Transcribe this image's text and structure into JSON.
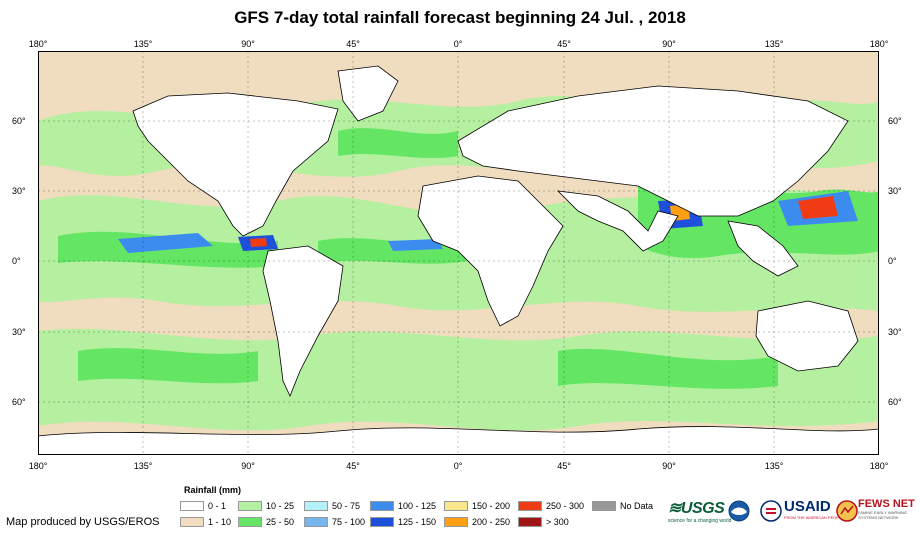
{
  "header": {
    "title": "GFS 7-day total rainfall forecast beginning 24 Jul. , 2018"
  },
  "map": {
    "longitude_ticks": [
      "180°",
      "135°",
      "90°",
      "45°",
      "0°",
      "45°",
      "90°",
      "135°",
      "180°"
    ],
    "latitude_ticks": [
      "60°",
      "30°",
      "0°",
      "30°",
      "60°"
    ],
    "longitude_values": [
      -180,
      -135,
      -90,
      -45,
      0,
      45,
      90,
      135,
      180
    ],
    "latitude_values": [
      60,
      30,
      0,
      -30,
      -60
    ],
    "lat_range": [
      -80,
      85
    ],
    "lon_range": [
      -180,
      180
    ]
  },
  "legend": {
    "title": "Rainfall (mm)",
    "items": [
      {
        "label": "0 - 1",
        "color": "#ffffff"
      },
      {
        "label": "1 - 10",
        "color": "#f0dcbe"
      },
      {
        "label": "10 - 25",
        "color": "#b4f0a0"
      },
      {
        "label": "25 - 50",
        "color": "#64e664"
      },
      {
        "label": "50 - 75",
        "color": "#b4f0fa"
      },
      {
        "label": "75 - 100",
        "color": "#78b4f0"
      },
      {
        "label": "100 - 125",
        "color": "#3c8cf0"
      },
      {
        "label": "125 - 150",
        "color": "#1e50dc"
      },
      {
        "label": "150 - 200",
        "color": "#fae68c"
      },
      {
        "label": "200 - 250",
        "color": "#ffa014"
      },
      {
        "label": "250 - 300",
        "color": "#f03c14"
      },
      {
        "label": "> 300",
        "color": "#a01414"
      },
      {
        "label": "No Data",
        "color": "#999999"
      }
    ]
  },
  "footer": {
    "producer": "Map produced by USGS/EROS",
    "logos": {
      "usgs": "≋USGS",
      "usgs_tagline": "science for a changing world",
      "usaid": "USAID",
      "usaid_tagline": "FROM THE AMERICAN PEOPLE",
      "fews": "FEWS NET",
      "fews_tagline": "FAMINE EARLY WARNING SYSTEMS NETWORK"
    }
  }
}
